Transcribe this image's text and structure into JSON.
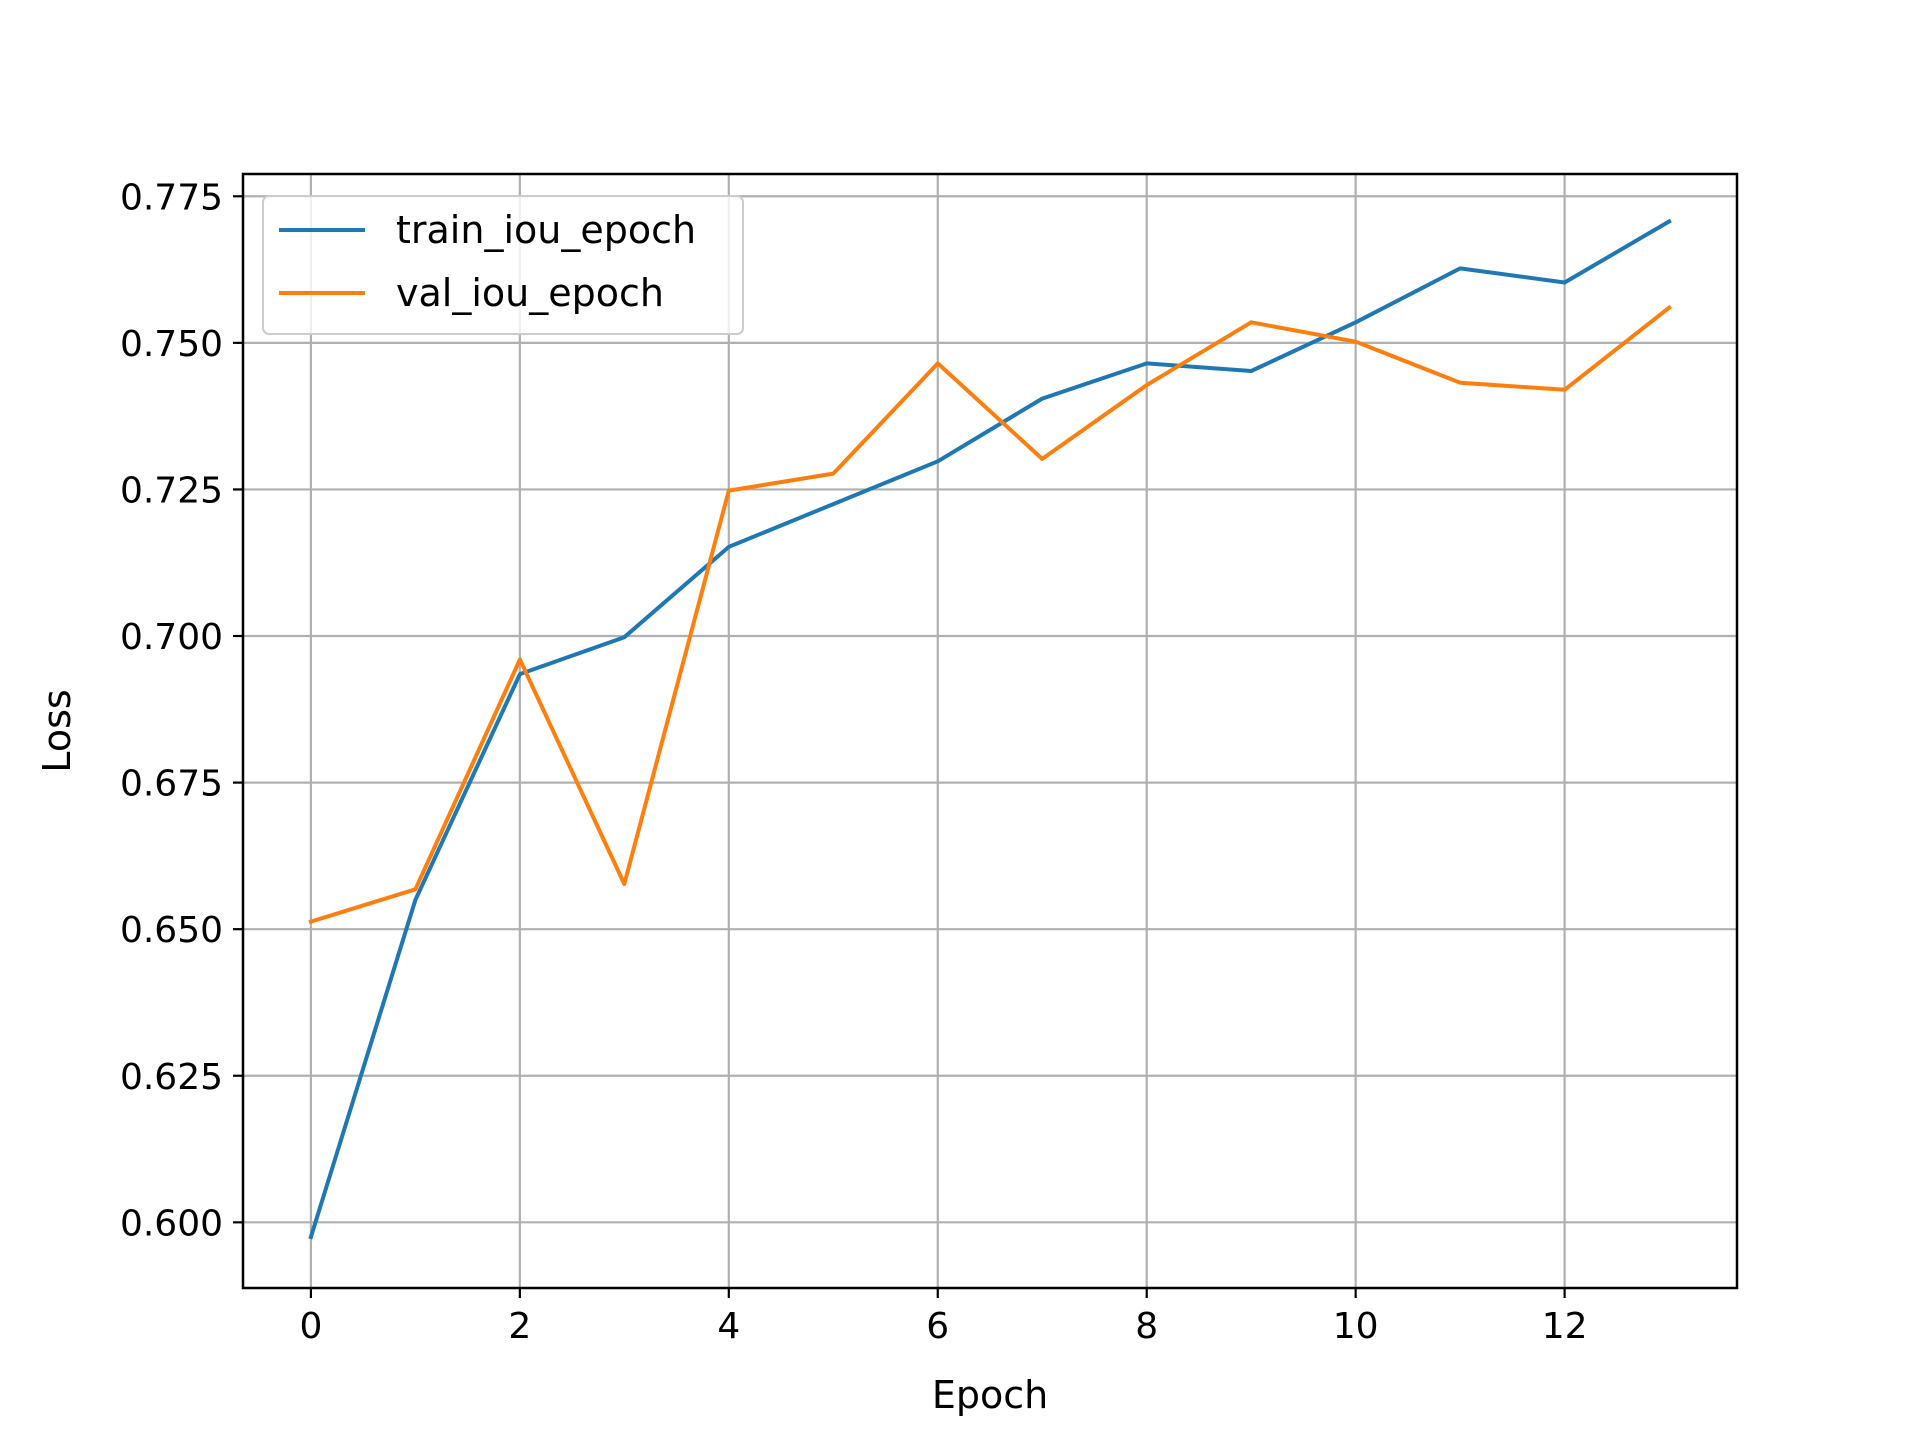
{
  "chart_data": {
    "type": "line",
    "title": "",
    "xlabel": "Epoch",
    "ylabel": "Loss",
    "xlim": [
      -0.65,
      13.65
    ],
    "ylim": [
      0.5888,
      0.7788
    ],
    "xticks": [
      0,
      2,
      4,
      6,
      8,
      10,
      12
    ],
    "yticks": [
      0.6,
      0.625,
      0.65,
      0.675,
      0.7,
      0.725,
      0.75,
      0.775
    ],
    "ytick_labels": [
      "0.600",
      "0.625",
      "0.650",
      "0.675",
      "0.700",
      "0.725",
      "0.750",
      "0.775"
    ],
    "grid": true,
    "legend_position": "top-left",
    "x": [
      0,
      1,
      2,
      3,
      4,
      5,
      6,
      7,
      8,
      9,
      10,
      11,
      12,
      13
    ],
    "series": [
      {
        "name": "train_iou_epoch",
        "color": "#1f77b4",
        "values": [
          0.5975,
          0.655,
          0.6935,
          0.6998,
          0.7152,
          0.7225,
          0.7298,
          0.7405,
          0.7465,
          0.7452,
          0.7535,
          0.7627,
          0.7603,
          0.7707
        ]
      },
      {
        "name": "val_iou_epoch",
        "color": "#ff7f0e",
        "values": [
          0.6513,
          0.6568,
          0.696,
          0.6577,
          0.7248,
          0.7277,
          0.7465,
          0.7302,
          0.7428,
          0.7535,
          0.7502,
          0.7432,
          0.742,
          0.756
        ]
      }
    ]
  }
}
